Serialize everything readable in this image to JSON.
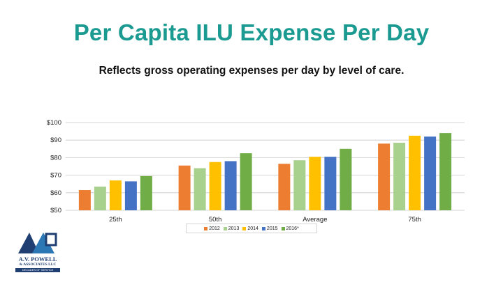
{
  "slide": {
    "title": "Per Capita ILU Expense Per Day",
    "subtitle": "Reflects gross operating expenses per day by level of care."
  },
  "logo": {
    "name": "A.V. POWELL",
    "sub": "& ASSOCIATES LLC",
    "tagline": "DECADES OF SERVICE"
  },
  "colors": {
    "title": "#1a9a90",
    "grid": "#c8c8c8",
    "logo": "#1f3e72"
  },
  "chart_data": {
    "type": "bar",
    "categories": [
      "25th",
      "50th",
      "Average",
      "75th"
    ],
    "ylim": [
      50,
      100
    ],
    "yticks": [
      "$50",
      "$60",
      "$70",
      "$80",
      "$90",
      "$100"
    ],
    "grid": true,
    "legend_position": "bottom",
    "series": [
      {
        "name": "2012",
        "color": "#ed7d31",
        "values": [
          61.5,
          75.5,
          76.5,
          88
        ]
      },
      {
        "name": "2013",
        "color": "#a9d18e",
        "values": [
          63.5,
          74,
          78.5,
          88.5
        ]
      },
      {
        "name": "2014",
        "color": "#ffc000",
        "values": [
          67,
          77.5,
          80.5,
          92.5
        ]
      },
      {
        "name": "2015",
        "color": "#4472c4",
        "values": [
          66.5,
          78,
          80.5,
          92
        ]
      },
      {
        "name": "2016*",
        "color": "#70ad47",
        "values": [
          69.5,
          82.5,
          85,
          94
        ]
      }
    ]
  }
}
